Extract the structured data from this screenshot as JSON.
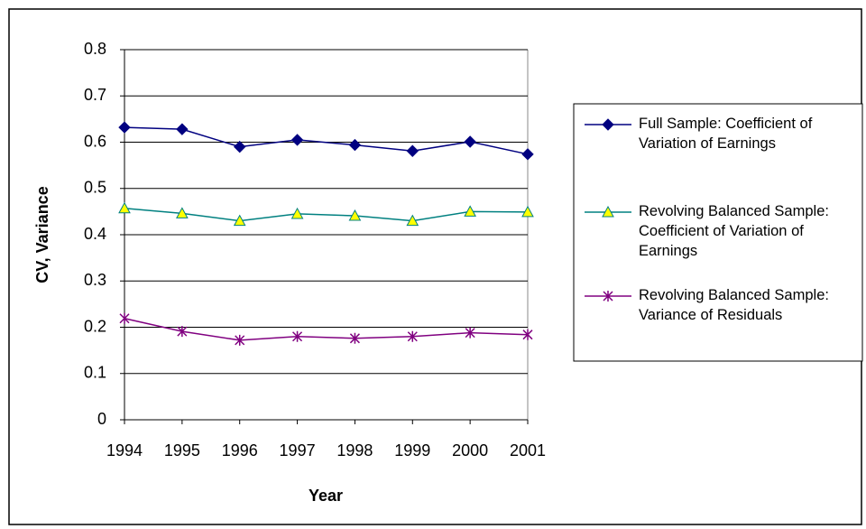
{
  "chart_data": {
    "type": "line",
    "x_label": "Year",
    "y_label": "CV, Variance",
    "categories": [
      "1994",
      "1995",
      "1996",
      "1997",
      "1998",
      "1999",
      "2000",
      "2001"
    ],
    "series": [
      {
        "name": "Full Sample: Coefficient of Variation of Earnings",
        "color": "#000080",
        "marker": "diamond",
        "values": [
          0.632,
          0.628,
          0.59,
          0.605,
          0.594,
          0.581,
          0.601,
          0.574
        ]
      },
      {
        "name": "Revolving Balanced Sample: Coefficient of Variation of Earnings",
        "color": "#008080",
        "marker": "triangle",
        "values": [
          0.457,
          0.446,
          0.43,
          0.445,
          0.441,
          0.43,
          0.45,
          0.449
        ]
      },
      {
        "name": "Revolving Balanced Sample: Variance of Residuals",
        "color": "#800080",
        "marker": "star",
        "values": [
          0.219,
          0.191,
          0.172,
          0.18,
          0.176,
          0.18,
          0.188,
          0.184
        ]
      }
    ],
    "ylim": [
      0,
      0.8
    ],
    "yticks": [
      0,
      0.1,
      0.2,
      0.3,
      0.4,
      0.5,
      0.6,
      0.7,
      0.8
    ],
    "grid": true,
    "legend": "right"
  }
}
